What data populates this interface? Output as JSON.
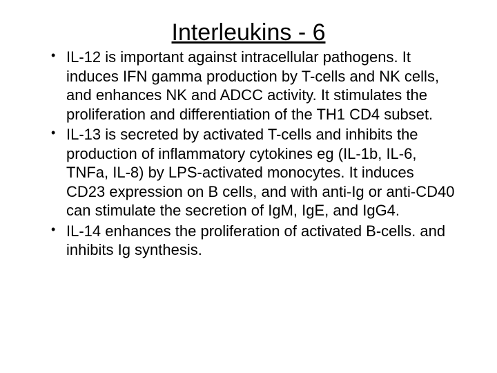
{
  "slide": {
    "title": "Interleukins - 6",
    "bullets": [
      "IL-12 is important against intracellular pathogens. It induces IFN gamma production by T-cells and NK cells, and enhances NK and ADCC activity.  It stimulates the proliferation and differentiation of the TH1 CD4 subset.",
      "IL-13 is secreted by activated T-cells and inhibits the production of inflammatory cytokines eg (IL-1b, IL-6, TNFa, IL-8) by LPS-activated monocytes. It induces CD23 expression on B cells, and with anti-Ig or anti-CD40 can stimulate the secretion of IgM, IgE, and IgG4.",
      "IL-14 enhances the proliferation of activated B-cells. and inhibits Ig synthesis."
    ],
    "title_fontsize": 34,
    "body_fontsize": 22,
    "font_family": "Comic Sans MS",
    "text_color": "#000000",
    "background_color": "#ffffff"
  }
}
